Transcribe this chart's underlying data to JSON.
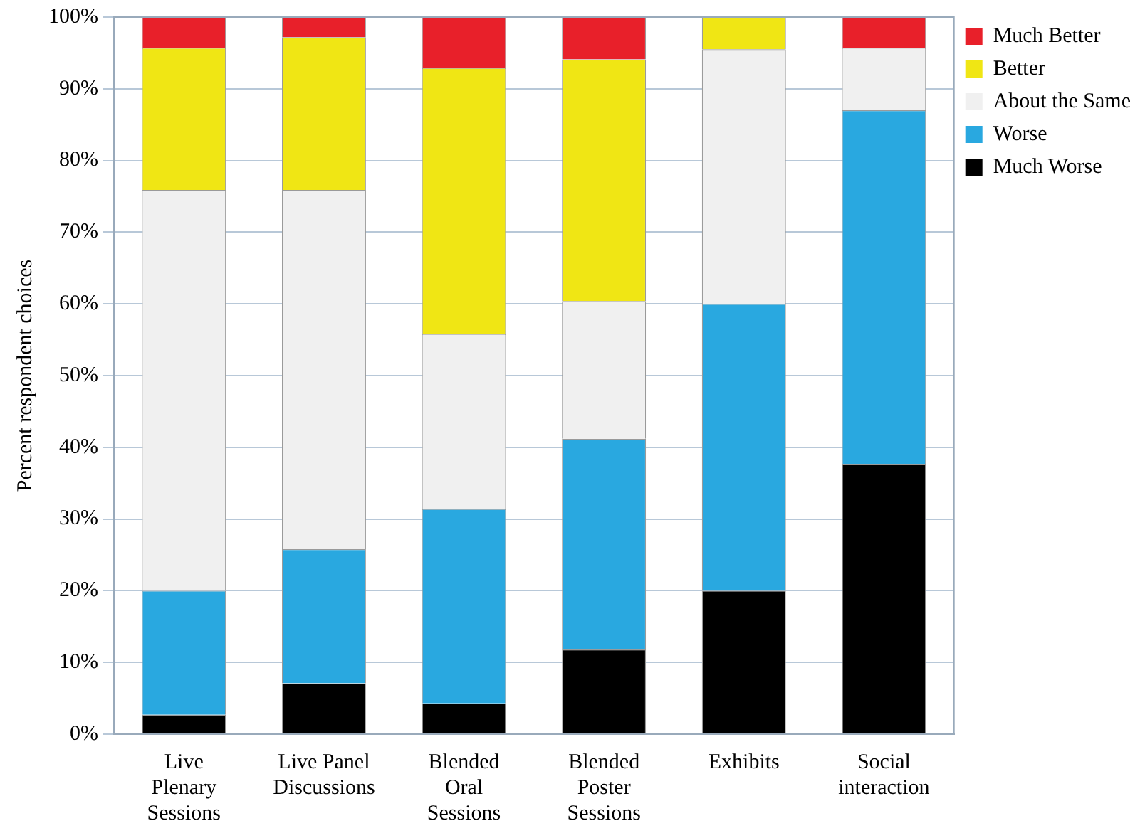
{
  "chart_data": {
    "type": "bar",
    "stacked": true,
    "ylabel": "Percent respondent choices",
    "categories": [
      "Live Plenary Sessions",
      "Live Panel Discussions",
      "Blended Oral Sessions",
      "Blended Poster Sessions",
      "Exhibits",
      "Social interaction"
    ],
    "series": [
      {
        "name": "Much Worse",
        "color": "#000000",
        "values": [
          2.7,
          7.1,
          4.3,
          11.8,
          20,
          37.7
        ]
      },
      {
        "name": "Worse",
        "color": "#29a8e0",
        "values": [
          17.3,
          18.7,
          27.1,
          29.4,
          40,
          49.3
        ]
      },
      {
        "name": "About the Same",
        "color": "#f0f0f0",
        "values": [
          55.9,
          50.1,
          24.4,
          19.2,
          35.5,
          8.7
        ]
      },
      {
        "name": "Better",
        "color": "#f0e614",
        "values": [
          19.8,
          21.3,
          37.1,
          33.7,
          4.5,
          0
        ]
      },
      {
        "name": "Much Better",
        "color": "#e8202a",
        "values": [
          4.3,
          2.8,
          7.1,
          5.9,
          0,
          4.3
        ]
      }
    ],
    "ylim": [
      0,
      100
    ],
    "yticks": [
      {
        "value": 0,
        "label": "0%"
      },
      {
        "value": 10,
        "label": "10%"
      },
      {
        "value": 20,
        "label": "20%"
      },
      {
        "value": 30,
        "label": "30%"
      },
      {
        "value": 40,
        "label": "40%"
      },
      {
        "value": 50,
        "label": "50%"
      },
      {
        "value": 60,
        "label": "60%"
      },
      {
        "value": 70,
        "label": "70%"
      },
      {
        "value": 80,
        "label": "80%"
      },
      {
        "value": 90,
        "label": "90%"
      },
      {
        "value": 100,
        "label": "100%"
      }
    ],
    "grid": "y",
    "legend": "top right"
  }
}
